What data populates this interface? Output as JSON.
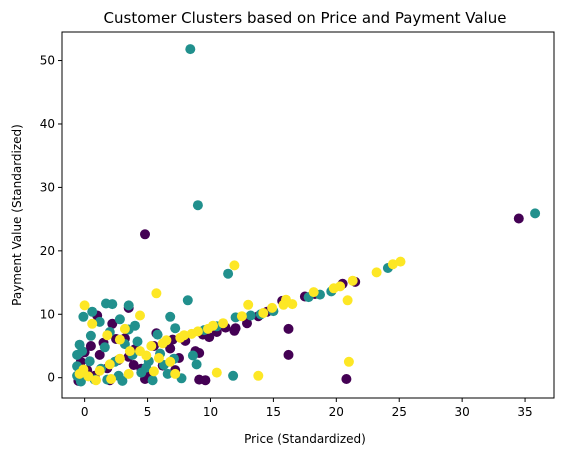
{
  "chart_data": {
    "type": "scatter",
    "title": "Customer Clusters based on Price and Payment Value",
    "xlabel": "Price (Standardized)",
    "ylabel": "Payment Value (Standardized)",
    "xlim": [
      -1.8,
      37.3
    ],
    "ylim": [
      -3.2,
      54.5
    ],
    "xticks": [
      0,
      5,
      10,
      15,
      20,
      25,
      30,
      35
    ],
    "yticks": [
      0,
      10,
      20,
      30,
      40,
      50
    ],
    "grid": false,
    "legend": "none",
    "colors": {
      "cluster_0": "#440154",
      "cluster_1": "#21908d",
      "cluster_2": "#fde725"
    },
    "series": [
      {
        "color_key": "cluster_0",
        "points": [
          [
            4.8,
            22.6
          ],
          [
            34.5,
            25.1
          ],
          [
            15.7,
            12.1
          ],
          [
            16.2,
            7.7
          ],
          [
            16.2,
            3.6
          ],
          [
            20.8,
            -0.2
          ],
          [
            9.4,
            6.8
          ],
          [
            9.1,
            3.9
          ],
          [
            9.1,
            -0.3
          ],
          [
            9.6,
            -0.4
          ],
          [
            8.8,
            4.2
          ],
          [
            7.5,
            3.1
          ],
          [
            13.8,
            9.7
          ],
          [
            14.5,
            10.4
          ],
          [
            12.9,
            8.6
          ],
          [
            11.2,
            7.9
          ],
          [
            10.5,
            7.2
          ],
          [
            12.0,
            7.8
          ],
          [
            6.5,
            5.5
          ],
          [
            7.0,
            6.0
          ],
          [
            5.5,
            5.0
          ],
          [
            4.0,
            4.5
          ],
          [
            3.2,
            6.2
          ],
          [
            2.5,
            6.1
          ],
          [
            1.5,
            5.5
          ],
          [
            0.5,
            5.0
          ],
          [
            0.0,
            4.0
          ],
          [
            -0.3,
            2.5
          ],
          [
            0.2,
            1.2
          ],
          [
            0.8,
            0.3
          ],
          [
            1.8,
            1.5
          ],
          [
            2.7,
            2.8
          ],
          [
            3.5,
            3.3
          ],
          [
            4.5,
            1.4
          ],
          [
            5.2,
            0.5
          ],
          [
            6.2,
            1.9
          ],
          [
            7.2,
            1.2
          ],
          [
            4.8,
            -0.2
          ],
          [
            2.0,
            -0.4
          ],
          [
            -0.5,
            -0.5
          ],
          [
            1.2,
            3.6
          ],
          [
            3.9,
            2.0
          ],
          [
            6.8,
            4.6
          ],
          [
            8.0,
            5.8
          ],
          [
            9.9,
            6.4
          ],
          [
            11.9,
            7.4
          ],
          [
            17.5,
            12.8
          ],
          [
            20.5,
            14.8
          ],
          [
            21.5,
            15.1
          ],
          [
            18.3,
            13.2
          ],
          [
            5.7,
            7.0
          ],
          [
            2.2,
            8.5
          ],
          [
            1.0,
            9.8
          ],
          [
            3.5,
            11.0
          ]
        ]
      },
      {
        "color_key": "cluster_1",
        "points": [
          [
            8.4,
            51.8
          ],
          [
            9.0,
            27.2
          ],
          [
            35.8,
            25.9
          ],
          [
            24.1,
            17.3
          ],
          [
            11.4,
            16.4
          ],
          [
            18.7,
            13.1
          ],
          [
            19.6,
            13.6
          ],
          [
            17.8,
            12.7
          ],
          [
            8.2,
            12.2
          ],
          [
            12.0,
            9.5
          ],
          [
            11.8,
            0.3
          ],
          [
            8.9,
            2.1
          ],
          [
            1.7,
            11.7
          ],
          [
            2.2,
            11.6
          ],
          [
            3.5,
            11.4
          ],
          [
            0.6,
            10.4
          ],
          [
            -0.1,
            9.6
          ],
          [
            1.2,
            8.8
          ],
          [
            2.8,
            9.2
          ],
          [
            4.0,
            8.2
          ],
          [
            4.2,
            5.7
          ],
          [
            6.8,
            9.6
          ],
          [
            7.2,
            7.8
          ],
          [
            5.8,
            6.8
          ],
          [
            3.5,
            7.6
          ],
          [
            2.0,
            7.2
          ],
          [
            0.5,
            6.6
          ],
          [
            -0.4,
            5.2
          ],
          [
            -0.6,
            3.6
          ],
          [
            -0.6,
            1.8
          ],
          [
            -0.6,
            0.3
          ],
          [
            -0.3,
            -0.6
          ],
          [
            0.8,
            -0.3
          ],
          [
            1.8,
            -0.3
          ],
          [
            2.7,
            0.3
          ],
          [
            3.0,
            -0.5
          ],
          [
            4.5,
            0.8
          ],
          [
            5.1,
            2.6
          ],
          [
            6.6,
            0.6
          ],
          [
            7.7,
            -0.1
          ],
          [
            6.3,
            2.0
          ],
          [
            3.8,
            3.6
          ],
          [
            2.4,
            2.5
          ],
          [
            1.3,
            1.4
          ],
          [
            0.4,
            2.6
          ],
          [
            -0.2,
            4.2
          ],
          [
            1.6,
            4.8
          ],
          [
            3.2,
            5.3
          ],
          [
            10.5,
            8.1
          ],
          [
            9.5,
            7.5
          ],
          [
            13.2,
            9.8
          ],
          [
            15.0,
            10.5
          ],
          [
            14.0,
            10.0
          ],
          [
            6.0,
            3.8
          ],
          [
            7.1,
            3.0
          ],
          [
            8.6,
            3.5
          ],
          [
            4.9,
            1.6
          ],
          [
            5.4,
            -0.4
          ]
        ]
      },
      {
        "color_key": "cluster_2",
        "points": [
          [
            11.9,
            17.7
          ],
          [
            25.1,
            18.3
          ],
          [
            24.5,
            17.9
          ],
          [
            23.2,
            16.6
          ],
          [
            21.3,
            15.3
          ],
          [
            20.9,
            12.2
          ],
          [
            21.0,
            2.5
          ],
          [
            13.8,
            0.3
          ],
          [
            10.5,
            0.8
          ],
          [
            7.2,
            0.6
          ],
          [
            5.7,
            13.3
          ],
          [
            13.0,
            11.5
          ],
          [
            16.0,
            12.3
          ],
          [
            15.8,
            11.5
          ],
          [
            14.9,
            11.0
          ],
          [
            16.5,
            11.6
          ],
          [
            19.8,
            14.1
          ],
          [
            20.3,
            14.4
          ],
          [
            12.5,
            9.7
          ],
          [
            11.0,
            8.6
          ],
          [
            9.8,
            7.7
          ],
          [
            8.5,
            6.9
          ],
          [
            7.6,
            6.3
          ],
          [
            6.5,
            5.9
          ],
          [
            5.3,
            5.0
          ],
          [
            4.4,
            4.2
          ],
          [
            3.6,
            4.2
          ],
          [
            2.8,
            3.0
          ],
          [
            2.0,
            2.1
          ],
          [
            1.2,
            1.1
          ],
          [
            0.3,
            0.2
          ],
          [
            -0.1,
            1.3
          ],
          [
            0.0,
            11.4
          ],
          [
            0.6,
            8.5
          ],
          [
            1.8,
            6.7
          ],
          [
            2.8,
            6.0
          ],
          [
            3.2,
            7.7
          ],
          [
            4.4,
            9.8
          ],
          [
            5.5,
            1.0
          ],
          [
            4.9,
            3.5
          ],
          [
            5.9,
            3.1
          ],
          [
            6.8,
            2.5
          ],
          [
            3.5,
            0.6
          ],
          [
            2.1,
            -0.2
          ],
          [
            0.9,
            -0.4
          ],
          [
            -0.4,
            0.6
          ],
          [
            14.2,
            10.2
          ],
          [
            18.2,
            13.5
          ],
          [
            9.0,
            7.3
          ],
          [
            10.2,
            8.2
          ],
          [
            7.9,
            6.7
          ],
          [
            6.2,
            5.4
          ]
        ]
      }
    ]
  }
}
